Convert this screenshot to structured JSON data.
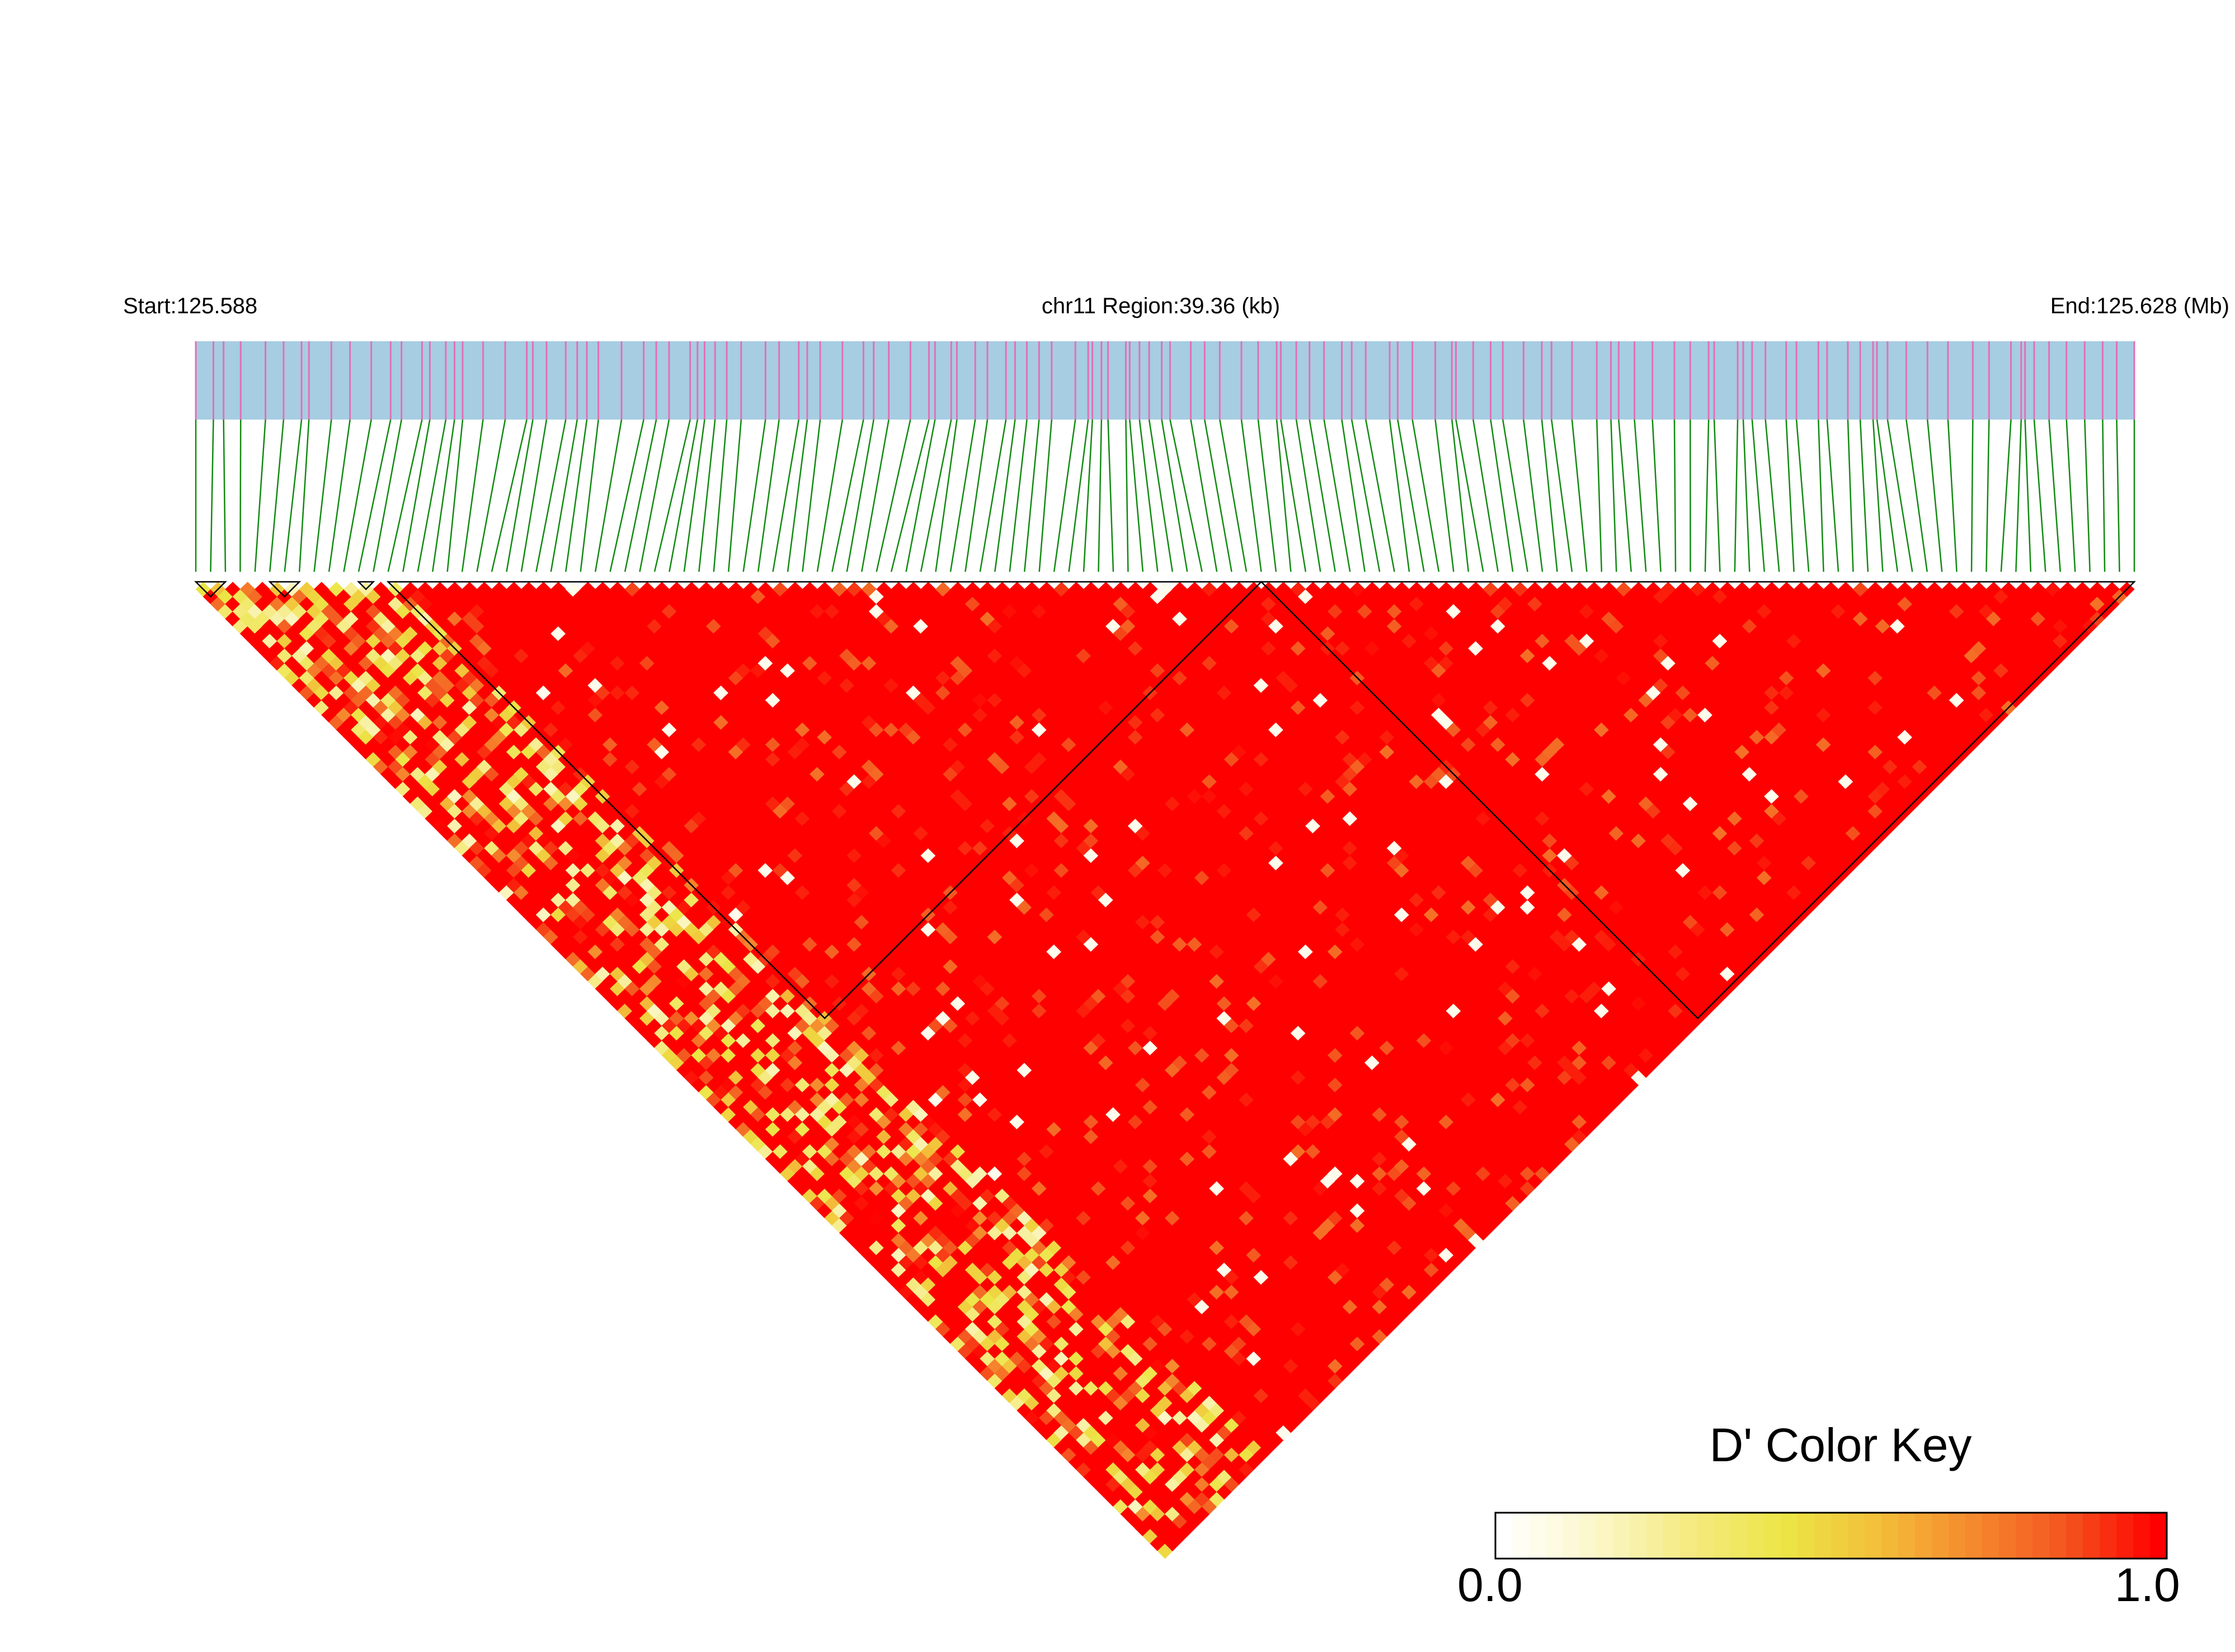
{
  "header": {
    "start": "Start:125.588",
    "region": "chr11 Region:39.36 (kb)",
    "end": "End:125.628 (Mb)"
  },
  "color_key": {
    "title": "D' Color Key",
    "min_label": "0.0",
    "max_label": "1.0",
    "gradient_colors": [
      "#ffffff",
      "#fbf7c8",
      "#f5ea80",
      "#ece546",
      "#f3bf3a",
      "#f58a2e",
      "#f4551f",
      "#ff0000"
    ]
  },
  "colors": {
    "track_fill": "#a6cde2",
    "snp_tick": "#e36fb9",
    "connector": "#128a12",
    "ld_high": "#ff0000"
  },
  "chart_data": {
    "type": "heatmap",
    "description_type": "LD triangle",
    "n_snps": 132,
    "region_start_mb": 125.588,
    "region_end_mb": 125.628,
    "value_range": [
      0,
      1
    ],
    "dominant_value": 1.0,
    "blocks": [
      {
        "first_snp": 1,
        "last_snp": 3
      },
      {
        "first_snp": 6,
        "last_snp": 8
      },
      {
        "first_snp": 12,
        "last_snp": 13
      },
      {
        "first_snp": 14,
        "last_snp": 73
      },
      {
        "first_snp": 73,
        "last_snp": 132
      }
    ],
    "low_ld_band": {
      "max_distance_snps": 14,
      "typical_value": 0.4
    }
  }
}
